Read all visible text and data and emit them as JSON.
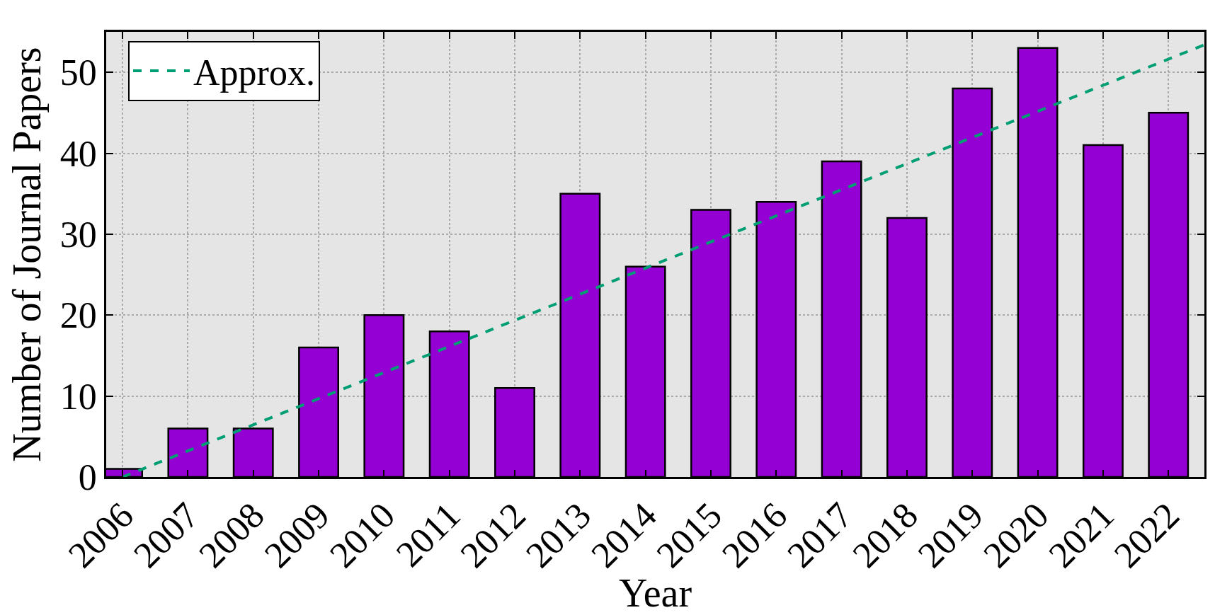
{
  "chart_data": {
    "type": "bar",
    "xlabel": "Year",
    "ylabel": "Number of Journal Papers",
    "x": [
      2006,
      2007,
      2008,
      2009,
      2010,
      2011,
      2012,
      2013,
      2014,
      2015,
      2016,
      2017,
      2018,
      2019,
      2020,
      2021,
      2022
    ],
    "series": [
      {
        "color": "#9400d3",
        "values": [
          1,
          6,
          6,
          16,
          20,
          18,
          11,
          35,
          26,
          33,
          34,
          39,
          32,
          48,
          53,
          41,
          45
        ]
      },
      {
        "type": "line",
        "name": "Approx.",
        "color": "#009e73",
        "line_style": "dashed",
        "x": [
          2006,
          2022.55
        ],
        "values": [
          0,
          53.4
        ]
      }
    ],
    "xlim": [
      2005.75,
      2022.55
    ],
    "xticks": [
      2006,
      2007,
      2008,
      2009,
      2010,
      2011,
      2012,
      2013,
      2014,
      2015,
      2016,
      2017,
      2018,
      2019,
      2020,
      2021,
      2022
    ],
    "ylim": [
      0,
      55
    ],
    "yticks": [
      0,
      10,
      20,
      30,
      40,
      50
    ],
    "grid": true,
    "legend": "top left"
  }
}
